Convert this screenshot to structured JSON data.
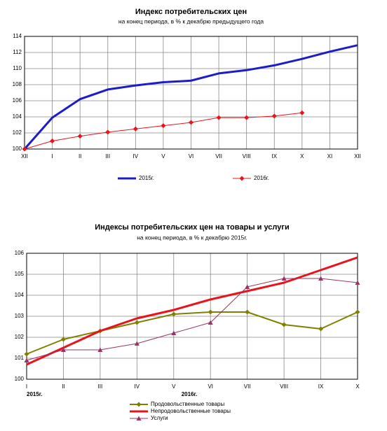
{
  "chart_data": [
    {
      "type": "line",
      "title": "Индекс потребительских цен",
      "subtitle": "на конец периода, в % к декабрю предыдущего года",
      "categories": [
        "XII",
        "I",
        "II",
        "III",
        "IV",
        "V",
        "VI",
        "VII",
        "VIII",
        "IX",
        "X",
        "XI",
        "XII"
      ],
      "series": [
        {
          "name": "2015г.",
          "color": "#1c1cc8",
          "width": 3,
          "marker": null,
          "values": [
            100,
            103.9,
            106.2,
            107.4,
            107.9,
            108.3,
            108.5,
            109.4,
            109.8,
            110.4,
            111.2,
            112.1,
            112.9
          ]
        },
        {
          "name": "2016г.",
          "color": "#e8141c",
          "width": 1,
          "marker": "diamond",
          "values": [
            100,
            101.0,
            101.6,
            102.1,
            102.5,
            102.9,
            103.3,
            103.9,
            103.9,
            104.1,
            104.5,
            null,
            null
          ]
        }
      ],
      "ylim": [
        100,
        114
      ],
      "yticks": [
        100,
        102,
        104,
        106,
        108,
        110,
        112,
        114
      ],
      "grid": true,
      "legend": "bottom"
    },
    {
      "type": "line",
      "title": "Индексы потребительских цен на товары и  услуги",
      "subtitle": "на конец периода, в % к декабрю 2015г.",
      "categories": [
        "I",
        "II",
        "III",
        "IV",
        "V",
        "VI",
        "VII",
        "VIII",
        "IX",
        "X"
      ],
      "annotations": [
        "2015г.",
        "2016г."
      ],
      "series": [
        {
          "name": "Продовольственные товары",
          "color": "#808000",
          "width": 2,
          "marker": "diamond",
          "values": [
            101.2,
            101.9,
            102.3,
            102.7,
            103.1,
            103.2,
            103.2,
            102.6,
            102.4,
            103.2
          ]
        },
        {
          "name": "Непродовольственные товары",
          "color": "#e8141c",
          "width": 3,
          "marker": null,
          "values": [
            100.7,
            101.5,
            102.3,
            102.9,
            103.3,
            103.8,
            104.2,
            104.6,
            105.2,
            105.8
          ]
        },
        {
          "name": "Услуги",
          "color": "#993366",
          "width": 1,
          "marker": "triangle",
          "values": [
            100.9,
            101.4,
            101.4,
            101.7,
            102.2,
            102.7,
            104.4,
            104.8,
            104.8,
            104.6
          ]
        }
      ],
      "ylim": [
        100,
        106
      ],
      "yticks": [
        100,
        101,
        102,
        103,
        104,
        105,
        106
      ],
      "grid": true,
      "legend": "bottom"
    }
  ]
}
